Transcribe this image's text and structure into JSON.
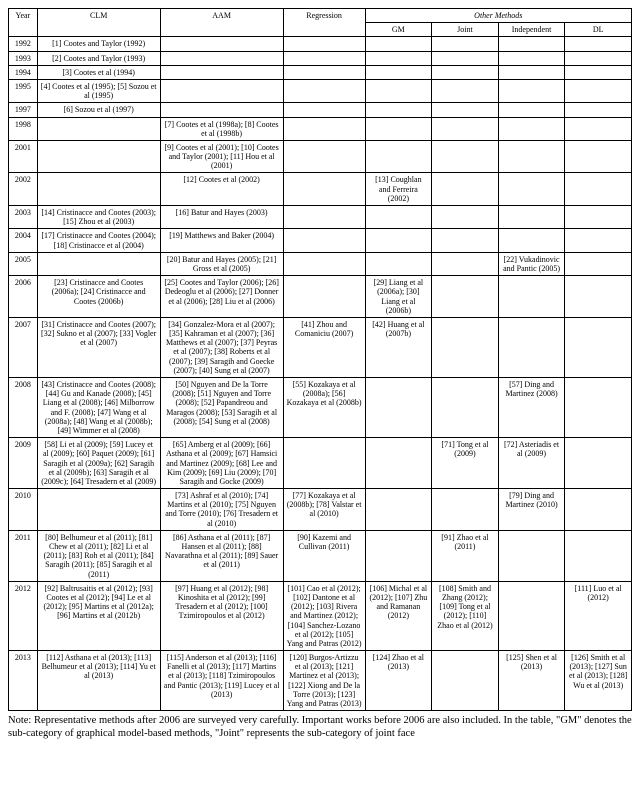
{
  "header": {
    "year": "Year",
    "clm": "CLM",
    "aam": "AAM",
    "regression": "Regression",
    "other_methods": "Other Methods",
    "gm": "GM",
    "joint": "Joint",
    "independent": "Independent",
    "dl": "DL"
  },
  "rows": [
    {
      "year": "1992",
      "clm": "[1] Cootes and Taylor (1992)",
      "aam": "",
      "reg": "",
      "gm": "",
      "joint": "",
      "ind": "",
      "dl": ""
    },
    {
      "year": "1993",
      "clm": "[2] Cootes and Taylor (1993)",
      "aam": "",
      "reg": "",
      "gm": "",
      "joint": "",
      "ind": "",
      "dl": ""
    },
    {
      "year": "1994",
      "clm": "[3] Cootes et al (1994)",
      "aam": "",
      "reg": "",
      "gm": "",
      "joint": "",
      "ind": "",
      "dl": ""
    },
    {
      "year": "1995",
      "clm": "[4] Cootes et al (1995); [5] Sozou et al (1995)",
      "aam": "",
      "reg": "",
      "gm": "",
      "joint": "",
      "ind": "",
      "dl": ""
    },
    {
      "year": "1997",
      "clm": "[6] Sozou et al (1997)",
      "aam": "",
      "reg": "",
      "gm": "",
      "joint": "",
      "ind": "",
      "dl": ""
    },
    {
      "year": "1998",
      "clm": "",
      "aam": "[7] Cootes et al (1998a); [8] Cootes et al (1998b)",
      "reg": "",
      "gm": "",
      "joint": "",
      "ind": "",
      "dl": ""
    },
    {
      "year": "2001",
      "clm": "",
      "aam": "[9] Cootes et al (2001); [10] Cootes and Taylor (2001); [11] Hou et al (2001)",
      "reg": "",
      "gm": "",
      "joint": "",
      "ind": "",
      "dl": ""
    },
    {
      "year": "2002",
      "clm": "",
      "aam": "[12] Cootes et al (2002)",
      "reg": "",
      "gm": "[13] Coughlan and Ferreira (2002)",
      "joint": "",
      "ind": "",
      "dl": ""
    },
    {
      "year": "2003",
      "clm": "[14] Cristinacce and Cootes (2003); [15] Zhou et al (2003)",
      "aam": "[16] Batur and Hayes (2003)",
      "reg": "",
      "gm": "",
      "joint": "",
      "ind": "",
      "dl": ""
    },
    {
      "year": "2004",
      "clm": "[17] Cristinacce and Cootes (2004); [18] Cristinacce et al (2004)",
      "aam": "[19] Matthews and Baker (2004)",
      "reg": "",
      "gm": "",
      "joint": "",
      "ind": "",
      "dl": ""
    },
    {
      "year": "2005",
      "clm": "",
      "aam": "[20] Batur and Hayes (2005); [21] Gross et al (2005)",
      "reg": "",
      "gm": "",
      "joint": "",
      "ind": "[22] Vukadinovic and Pantic (2005)",
      "dl": ""
    },
    {
      "year": "2006",
      "clm": "[23] Cristinacce and Cootes (2006a); [24] Cristinacce and Cootes (2006b)",
      "aam": "[25] Cootes and Taylor (2006); [26] Dedeoglu et al (2006); [27] Donner et al (2006); [28] Liu et al (2006)",
      "reg": "",
      "gm": "[29] Liang et al (2006a); [30] Liang et al (2006b)",
      "joint": "",
      "ind": "",
      "dl": ""
    },
    {
      "year": "2007",
      "clm": "[31] Cristinacce and Cootes (2007); [32] Sukno et al (2007); [33] Vogler et al (2007)",
      "aam": "[34] Gonzalez-Mora et al (2007); [35] Kahraman et al (2007); [36] Matthews et al (2007); [37] Peyras et al (2007); [38] Roberts et al (2007); [39] Saragih and Goecke (2007); [40] Sung et al (2007)",
      "reg": "[41] Zhou and Comaniciu (2007)",
      "gm": "[42] Huang et al (2007b)",
      "joint": "",
      "ind": "",
      "dl": ""
    },
    {
      "year": "2008",
      "clm": "[43] Cristinacce and Cootes (2008); [44] Gu and Kanade (2008); [45] Liang et al (2008); [46] Milborrow and F. (2008); [47] Wang et al (2008a); [48] Wang et al (2008b); [49] Wimmer et al (2008)",
      "aam": "[50] Nguyen and De la Torre (2008); [51] Nguyen and Torre (2008); [52] Papandreou and Maragos (2008); [53] Saragih et al (2008); [54] Sung et al (2008)",
      "reg": "[55] Kozakaya et al (2008a); [56] Kozakaya et al (2008b)",
      "gm": "",
      "joint": "",
      "ind": "[57] Ding and Martinez (2008)",
      "dl": ""
    },
    {
      "year": "2009",
      "clm": "[58] Li et al (2009); [59] Lucey et al (2009); [60] Paquet (2009); [61] Saragih et al (2009a); [62] Saragih et al (2009b); [63] Saragih et al (2009c); [64] Tresadern et al (2009)",
      "aam": "[65] Amberg et al (2009); [66] Asthana et al (2009); [67] Hamsici and Martinez (2009); [68] Lee and Kim (2009); [69] Liu (2009); [70] Saragih and Gocke (2009)",
      "reg": "",
      "gm": "",
      "joint": "[71] Tong et al (2009)",
      "ind": "[72] Asteriadis et al (2009)",
      "dl": ""
    },
    {
      "year": "2010",
      "clm": "",
      "aam": "[73] Ashraf et al (2010); [74] Martins et al (2010); [75] Nguyen and Torre (2010); [76] Tresadern et al (2010)",
      "reg": "[77] Kozakaya et al (2008b); [78] Valstar et al (2010)",
      "gm": "",
      "joint": "",
      "ind": "[79] Ding and Martinez (2010)",
      "dl": ""
    },
    {
      "year": "2011",
      "clm": "[80] Belhumeur et al (2011); [81] Chew et al (2011); [82] Li et al (2011); [83] Roh et al (2011); [84] Saragih (2011); [85] Saragih et al (2011)",
      "aam": "[86] Asthana et al (2011); [87] Hansen et al (2011); [88] Navarathna et al (2011); [89] Sauer et al (2011)",
      "reg": "[90] Kazemi and Cullivan (2011)",
      "gm": "",
      "joint": "[91] Zhao et al (2011)",
      "ind": "",
      "dl": ""
    },
    {
      "year": "2012",
      "clm": "[92] Baltrusaitis et al (2012); [93] Cootes et al (2012); [94] Le et al (2012); [95] Martins et al (2012a); [96] Martins et al (2012b)",
      "aam": "[97] Huang et al (2012); [98] Kinoshita et al (2012); [99] Tresadern et al (2012); [100] Tzimiropoulos et al (2012)",
      "reg": "[101] Cao et al (2012); [102] Dantone et al (2012); [103] Rivera and Martinez (2012); [104] Sanchez-Lozano et al (2012); [105] Yang and Patras (2012)",
      "gm": "[106] Michal et al (2012); [107] Zhu and Ramanan (2012)",
      "joint": "[108] Smith and Zhang (2012); [109] Tong et al (2012); [110] Zhao et al (2012)",
      "ind": "",
      "dl": "[111] Luo et al (2012)"
    },
    {
      "year": "2013",
      "clm": "[112] Asthana et al (2013); [113] Belhumeur et al (2013); [114] Yu et al (2013)",
      "aam": "[115] Anderson et al (2013); [116] Fanelli et al (2013); [117] Martins et al (2013); [118] Tzimiropoulos and Pantic (2013); [119] Lucey et al (2013)",
      "reg": "[120] Burgos-Artizzu et al (2013); [121] Martinez et al (2013); [122] Xiong and De la Torre (2013); [123] Yang and Patras (2013)",
      "gm": "[124] Zhao et al (2013)",
      "joint": "",
      "ind": "[125] Shen et al (2013)",
      "dl": "[126] Smith et al (2013); [127] Sun et al (2013); [128] Wu et al (2013)"
    }
  ],
  "footnote": "Note: Representative methods after 2006 are surveyed very carefully. Important works before 2006 are also included. In the table, \"GM\" denotes the sub-category of graphical model-based methods, \"Joint\" represents the sub-category of joint face"
}
